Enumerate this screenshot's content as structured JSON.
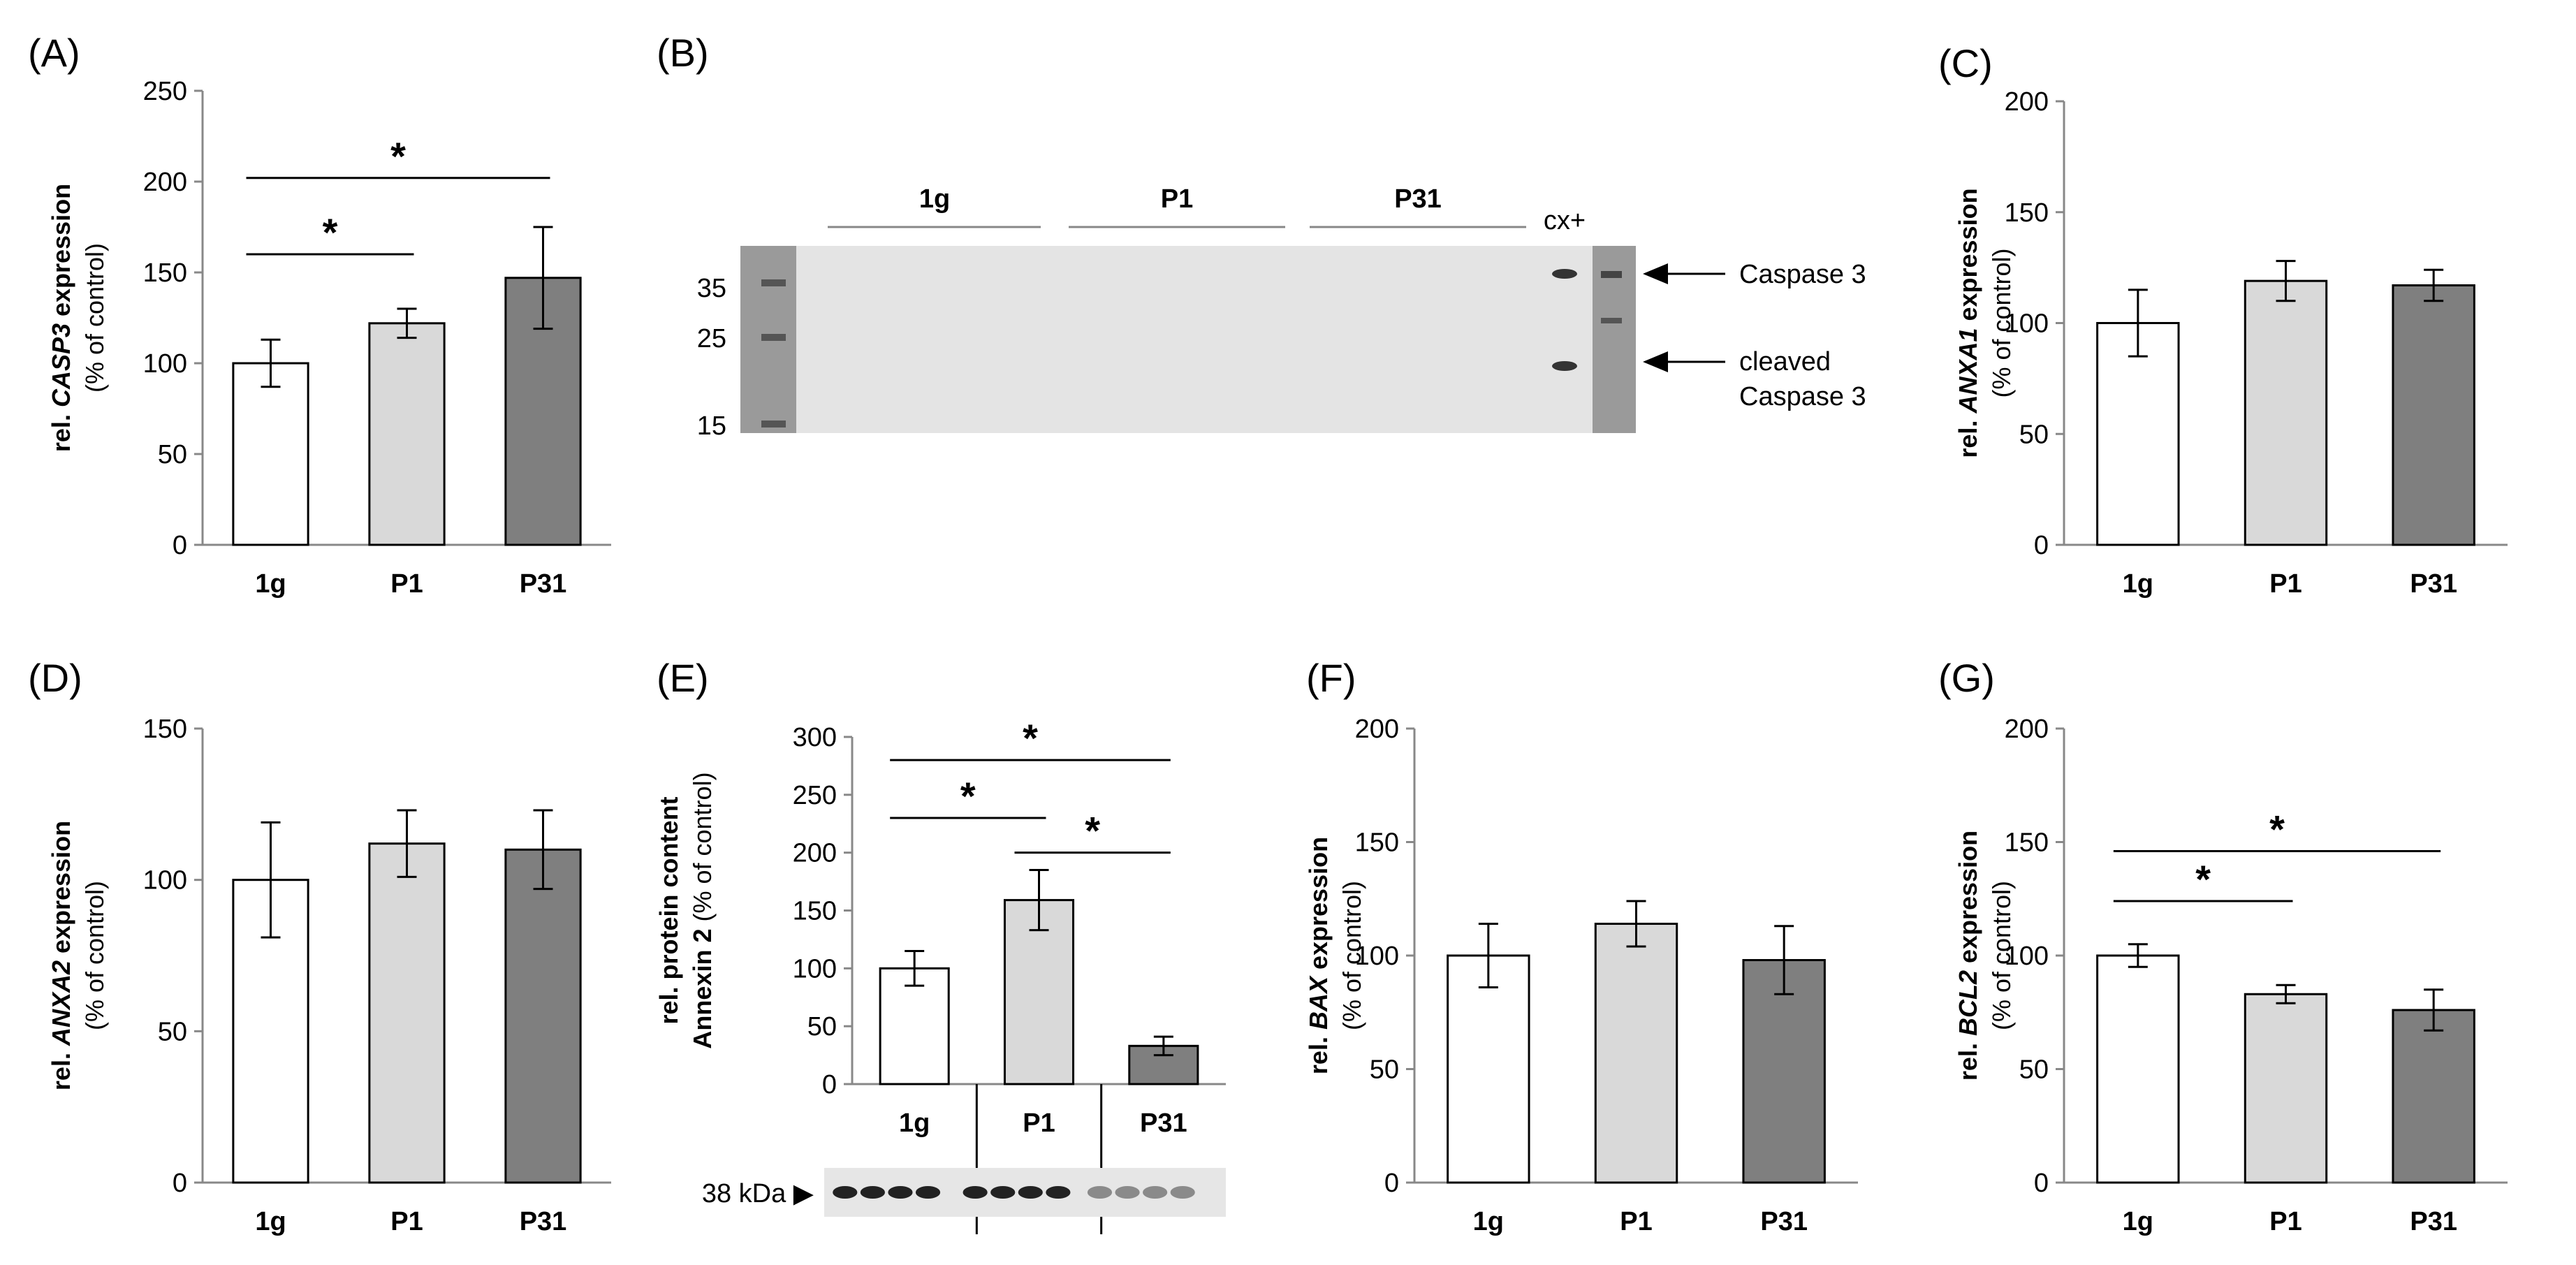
{
  "panels": {
    "A": "(A)",
    "B": "(B)",
    "C": "(C)",
    "D": "(D)",
    "E": "(E)",
    "F": "(F)",
    "G": "(G)"
  },
  "chart_data": [
    {
      "id": "A",
      "type": "bar",
      "categories": [
        "1g",
        "P1",
        "P31"
      ],
      "values": [
        100,
        122,
        147
      ],
      "errors": [
        13,
        8,
        28
      ],
      "colors": [
        "#ffffff",
        "#d9d9d9",
        "#7f7f7f"
      ],
      "ylim": [
        0,
        250
      ],
      "yticks": [
        0,
        50,
        100,
        150,
        200,
        250
      ],
      "ylabel": {
        "line1_prefix": "rel. ",
        "line1_gene": "CASP3",
        "line1_suffix": " expression",
        "line2": "(% of control)"
      },
      "significance": [
        {
          "from": "1g",
          "to": "P1",
          "y": 160,
          "mark": "*"
        },
        {
          "from": "1g",
          "to": "P31",
          "y": 202,
          "mark": "*"
        }
      ]
    },
    {
      "id": "C",
      "type": "bar",
      "categories": [
        "1g",
        "P1",
        "P31"
      ],
      "values": [
        100,
        119,
        117
      ],
      "errors": [
        15,
        9,
        7
      ],
      "colors": [
        "#ffffff",
        "#d9d9d9",
        "#7f7f7f"
      ],
      "ylim": [
        0,
        200
      ],
      "yticks": [
        0,
        50,
        100,
        150,
        200
      ],
      "ylabel": {
        "line1_prefix": "rel. ",
        "line1_gene": "ANXA1",
        "line1_suffix": " expression",
        "line2": "(% of control)"
      },
      "significance": []
    },
    {
      "id": "D",
      "type": "bar",
      "categories": [
        "1g",
        "P1",
        "P31"
      ],
      "values": [
        100,
        112,
        110
      ],
      "errors": [
        19,
        11,
        13
      ],
      "colors": [
        "#ffffff",
        "#d9d9d9",
        "#7f7f7f"
      ],
      "ylim": [
        0,
        150
      ],
      "yticks": [
        0,
        50,
        100,
        150
      ],
      "ylabel": {
        "line1_prefix": "rel. ",
        "line1_gene": "ANXA2",
        "line1_suffix": " expression",
        "line2": "(% of control)"
      },
      "significance": []
    },
    {
      "id": "E",
      "type": "bar",
      "categories": [
        "1g",
        "P1",
        "P31"
      ],
      "values": [
        100,
        159,
        33
      ],
      "errors": [
        15,
        26,
        8
      ],
      "colors": [
        "#ffffff",
        "#d9d9d9",
        "#7f7f7f"
      ],
      "ylim": [
        0,
        300
      ],
      "yticks": [
        0,
        50,
        100,
        150,
        200,
        250,
        300
      ],
      "ylabel": {
        "line1": "rel. protein content",
        "line2_bold": "Annexin 2",
        "line2_rest": " (% of control)"
      },
      "significance": [
        {
          "from": "1g",
          "to": "P1",
          "y": 230,
          "mark": "*"
        },
        {
          "from": "P1",
          "to": "P31",
          "y": 200,
          "mark": "*"
        },
        {
          "from": "1g",
          "to": "P31",
          "y": 280,
          "mark": "*"
        }
      ],
      "blot": {
        "marker": "38 kDa ▶"
      }
    },
    {
      "id": "F",
      "type": "bar",
      "categories": [
        "1g",
        "P1",
        "P31"
      ],
      "values": [
        100,
        114,
        98
      ],
      "errors": [
        14,
        10,
        15
      ],
      "colors": [
        "#ffffff",
        "#d9d9d9",
        "#7f7f7f"
      ],
      "ylim": [
        0,
        200
      ],
      "yticks": [
        0,
        50,
        100,
        150,
        200
      ],
      "ylabel": {
        "line1_prefix": "rel. ",
        "line1_gene": "BAX",
        "line1_suffix": " expression",
        "line2": "(% of control)"
      },
      "significance": []
    },
    {
      "id": "G",
      "type": "bar",
      "categories": [
        "1g",
        "P1",
        "P31"
      ],
      "values": [
        100,
        83,
        76
      ],
      "errors": [
        5,
        4,
        9
      ],
      "colors": [
        "#ffffff",
        "#d9d9d9",
        "#7f7f7f"
      ],
      "ylim": [
        0,
        200
      ],
      "yticks": [
        0,
        50,
        100,
        150,
        200
      ],
      "ylabel": {
        "line1_prefix": "rel. ",
        "line1_gene": "BCL2",
        "line1_suffix": " expression",
        "line2": "(% of control)"
      },
      "significance": [
        {
          "from": "1g",
          "to": "P1",
          "y": 124,
          "mark": "*"
        },
        {
          "from": "1g",
          "to": "P31",
          "y": 146,
          "mark": "*"
        }
      ]
    }
  ],
  "blot_b": {
    "lanes": [
      "1g",
      "P1",
      "P31"
    ],
    "positive_control": "cx+",
    "ladder": [
      "35",
      "25",
      "15"
    ],
    "annotations": [
      "Caspase 3",
      "cleaved",
      "Caspase 3"
    ]
  }
}
